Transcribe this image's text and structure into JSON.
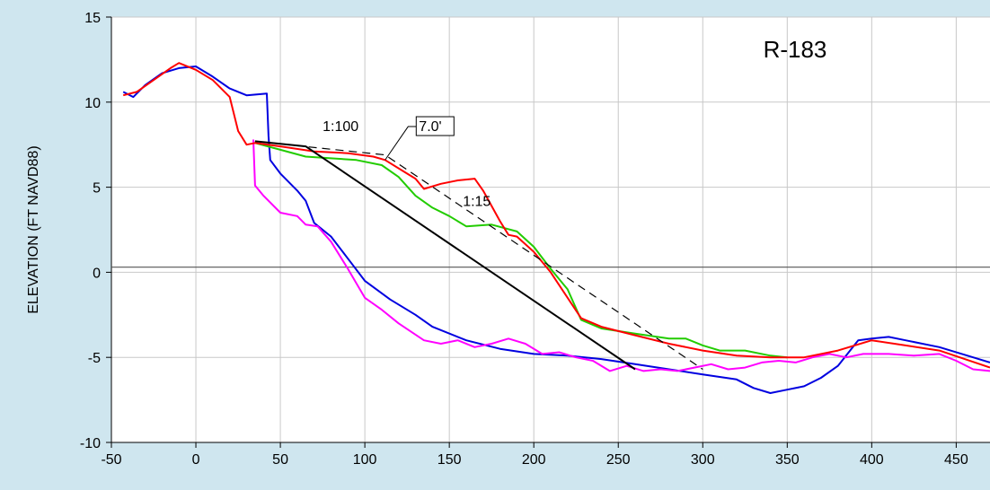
{
  "chart_data": {
    "type": "line",
    "title": "R-183",
    "ylabel": "ELEVATION (FT NAVD88)",
    "xlabel": "",
    "xlim": [
      -50,
      470
    ],
    "ylim": [
      -10,
      15
    ],
    "xticks": [
      -50,
      0,
      50,
      100,
      150,
      200,
      250,
      300,
      350,
      400,
      450
    ],
    "yticks": [
      -10,
      -5,
      0,
      5,
      10,
      15
    ],
    "grid": true,
    "colors": {
      "background": "#cfe6ef",
      "plot": "#ffffff",
      "grid": "#c8c8c8",
      "blue": "#0000e0",
      "red": "#ff0000",
      "green": "#22cc00",
      "magenta": "#ff00ff",
      "black": "#000000"
    },
    "reference_line_y": 0.3,
    "annotations": [
      {
        "text": "1:100",
        "x": 75,
        "y": 8.3
      },
      {
        "text": "7.0'",
        "x": 132,
        "y": 8.3,
        "boxed": true,
        "leader_to": [
          112,
          6.6
        ]
      },
      {
        "text": "1:15",
        "x": 158,
        "y": 3.9
      }
    ],
    "series": [
      {
        "color": "#0000e0",
        "style": "solid",
        "points": [
          [
            -43,
            10.6
          ],
          [
            -37,
            10.3
          ],
          [
            -30,
            11.0
          ],
          [
            -20,
            11.7
          ],
          [
            -10,
            12.0
          ],
          [
            0,
            12.1
          ],
          [
            10,
            11.5
          ],
          [
            20,
            10.8
          ],
          [
            30,
            10.4
          ],
          [
            42,
            10.5
          ],
          [
            43,
            8
          ],
          [
            44,
            6.6
          ],
          [
            50,
            5.8
          ],
          [
            60,
            4.8
          ],
          [
            65,
            4.2
          ],
          [
            70,
            2.9
          ],
          [
            80,
            2.1
          ],
          [
            90,
            0.8
          ],
          [
            100,
            -0.5
          ],
          [
            115,
            -1.6
          ],
          [
            130,
            -2.5
          ],
          [
            140,
            -3.2
          ],
          [
            160,
            -4.0
          ],
          [
            180,
            -4.5
          ],
          [
            200,
            -4.8
          ],
          [
            220,
            -4.9
          ],
          [
            240,
            -5.1
          ],
          [
            260,
            -5.4
          ],
          [
            280,
            -5.7
          ],
          [
            300,
            -6.0
          ],
          [
            320,
            -6.3
          ],
          [
            330,
            -6.8
          ],
          [
            340,
            -7.1
          ],
          [
            350,
            -6.9
          ],
          [
            360,
            -6.7
          ],
          [
            370,
            -6.2
          ],
          [
            380,
            -5.5
          ],
          [
            392,
            -4.0
          ],
          [
            400,
            -3.9
          ],
          [
            410,
            -3.8
          ],
          [
            420,
            -4.0
          ],
          [
            440,
            -4.4
          ],
          [
            460,
            -5.0
          ],
          [
            470,
            -5.3
          ]
        ]
      },
      {
        "color": "#ff00ff",
        "style": "solid",
        "points": [
          [
            34,
            7.8
          ],
          [
            35,
            5.1
          ],
          [
            40,
            4.5
          ],
          [
            50,
            3.5
          ],
          [
            60,
            3.3
          ],
          [
            65,
            2.8
          ],
          [
            72,
            2.7
          ],
          [
            80,
            1.8
          ],
          [
            90,
            0.2
          ],
          [
            100,
            -1.5
          ],
          [
            110,
            -2.2
          ],
          [
            120,
            -3.0
          ],
          [
            135,
            -4.0
          ],
          [
            145,
            -4.2
          ],
          [
            155,
            -4.0
          ],
          [
            165,
            -4.4
          ],
          [
            175,
            -4.2
          ],
          [
            185,
            -3.9
          ],
          [
            195,
            -4.2
          ],
          [
            205,
            -4.8
          ],
          [
            215,
            -4.7
          ],
          [
            225,
            -5.0
          ],
          [
            235,
            -5.2
          ],
          [
            245,
            -5.8
          ],
          [
            255,
            -5.5
          ],
          [
            265,
            -5.8
          ],
          [
            275,
            -5.7
          ],
          [
            285,
            -5.8
          ],
          [
            295,
            -5.6
          ],
          [
            305,
            -5.4
          ],
          [
            315,
            -5.7
          ],
          [
            325,
            -5.6
          ],
          [
            335,
            -5.3
          ],
          [
            345,
            -5.2
          ],
          [
            355,
            -5.3
          ],
          [
            365,
            -5.0
          ],
          [
            375,
            -4.8
          ],
          [
            385,
            -5.0
          ],
          [
            395,
            -4.8
          ],
          [
            410,
            -4.8
          ],
          [
            425,
            -4.9
          ],
          [
            440,
            -4.8
          ],
          [
            450,
            -5.2
          ],
          [
            460,
            -5.7
          ],
          [
            470,
            -5.8
          ]
        ]
      },
      {
        "color": "#22cc00",
        "style": "solid",
        "points": [
          [
            35,
            7.6
          ],
          [
            50,
            7.2
          ],
          [
            65,
            6.8
          ],
          [
            80,
            6.7
          ],
          [
            95,
            6.6
          ],
          [
            110,
            6.3
          ],
          [
            120,
            5.6
          ],
          [
            130,
            4.5
          ],
          [
            140,
            3.8
          ],
          [
            150,
            3.3
          ],
          [
            160,
            2.7
          ],
          [
            175,
            2.8
          ],
          [
            190,
            2.4
          ],
          [
            200,
            1.5
          ],
          [
            210,
            0.2
          ],
          [
            220,
            -1.0
          ],
          [
            228,
            -2.8
          ],
          [
            240,
            -3.3
          ],
          [
            260,
            -3.6
          ],
          [
            280,
            -3.9
          ],
          [
            290,
            -3.9
          ],
          [
            300,
            -4.3
          ],
          [
            310,
            -4.6
          ],
          [
            325,
            -4.6
          ],
          [
            340,
            -4.9
          ],
          [
            350,
            -5.0
          ]
        ]
      },
      {
        "color": "#ff0000",
        "style": "solid",
        "points": [
          [
            -43,
            10.4
          ],
          [
            -35,
            10.6
          ],
          [
            -25,
            11.3
          ],
          [
            -15,
            12.0
          ],
          [
            -10,
            12.3
          ],
          [
            0,
            11.9
          ],
          [
            10,
            11.3
          ],
          [
            20,
            10.3
          ],
          [
            25,
            8.3
          ],
          [
            30,
            7.5
          ],
          [
            35,
            7.6
          ],
          [
            50,
            7.4
          ],
          [
            70,
            7.1
          ],
          [
            90,
            7.0
          ],
          [
            105,
            6.8
          ],
          [
            112,
            6.6
          ],
          [
            125,
            5.8
          ],
          [
            130,
            5.5
          ],
          [
            135,
            4.9
          ],
          [
            145,
            5.2
          ],
          [
            155,
            5.4
          ],
          [
            165,
            5.5
          ],
          [
            170,
            4.8
          ],
          [
            180,
            3.0
          ],
          [
            185,
            2.2
          ],
          [
            190,
            2.1
          ],
          [
            200,
            1.2
          ],
          [
            210,
            0.0
          ],
          [
            220,
            -1.5
          ],
          [
            228,
            -2.7
          ],
          [
            240,
            -3.2
          ],
          [
            260,
            -3.7
          ],
          [
            280,
            -4.2
          ],
          [
            300,
            -4.6
          ],
          [
            320,
            -4.9
          ],
          [
            340,
            -5.0
          ],
          [
            360,
            -5.0
          ],
          [
            380,
            -4.6
          ],
          [
            400,
            -4.0
          ],
          [
            420,
            -4.3
          ],
          [
            440,
            -4.6
          ],
          [
            455,
            -5.1
          ],
          [
            470,
            -5.6
          ]
        ]
      },
      {
        "color": "#000000",
        "style": "solid",
        "points": [
          [
            35,
            7.7
          ],
          [
            65,
            7.4
          ],
          [
            260,
            -5.7
          ]
        ]
      },
      {
        "color": "#000000",
        "style": "dashed",
        "points": [
          [
            35,
            7.7
          ],
          [
            112,
            6.9
          ],
          [
            300,
            -5.7
          ]
        ]
      }
    ]
  }
}
